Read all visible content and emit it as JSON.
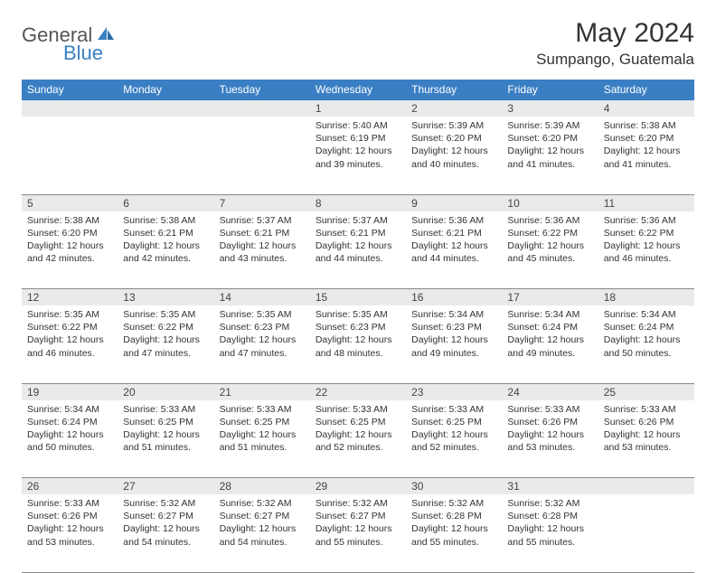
{
  "logo": {
    "text1": "General",
    "text2": "Blue",
    "color_general": "#555555",
    "color_blue": "#3a7fc4"
  },
  "title": "May 2024",
  "location": "Sumpango, Guatemala",
  "header_bg": "#3a7fc4",
  "daynum_bg": "#e9eaec",
  "weekdays": [
    "Sunday",
    "Monday",
    "Tuesday",
    "Wednesday",
    "Thursday",
    "Friday",
    "Saturday"
  ],
  "weeks": [
    [
      null,
      null,
      null,
      {
        "n": "1",
        "sr": "Sunrise: 5:40 AM",
        "ss": "Sunset: 6:19 PM",
        "d1": "Daylight: 12 hours",
        "d2": "and 39 minutes."
      },
      {
        "n": "2",
        "sr": "Sunrise: 5:39 AM",
        "ss": "Sunset: 6:20 PM",
        "d1": "Daylight: 12 hours",
        "d2": "and 40 minutes."
      },
      {
        "n": "3",
        "sr": "Sunrise: 5:39 AM",
        "ss": "Sunset: 6:20 PM",
        "d1": "Daylight: 12 hours",
        "d2": "and 41 minutes."
      },
      {
        "n": "4",
        "sr": "Sunrise: 5:38 AM",
        "ss": "Sunset: 6:20 PM",
        "d1": "Daylight: 12 hours",
        "d2": "and 41 minutes."
      }
    ],
    [
      {
        "n": "5",
        "sr": "Sunrise: 5:38 AM",
        "ss": "Sunset: 6:20 PM",
        "d1": "Daylight: 12 hours",
        "d2": "and 42 minutes."
      },
      {
        "n": "6",
        "sr": "Sunrise: 5:38 AM",
        "ss": "Sunset: 6:21 PM",
        "d1": "Daylight: 12 hours",
        "d2": "and 42 minutes."
      },
      {
        "n": "7",
        "sr": "Sunrise: 5:37 AM",
        "ss": "Sunset: 6:21 PM",
        "d1": "Daylight: 12 hours",
        "d2": "and 43 minutes."
      },
      {
        "n": "8",
        "sr": "Sunrise: 5:37 AM",
        "ss": "Sunset: 6:21 PM",
        "d1": "Daylight: 12 hours",
        "d2": "and 44 minutes."
      },
      {
        "n": "9",
        "sr": "Sunrise: 5:36 AM",
        "ss": "Sunset: 6:21 PM",
        "d1": "Daylight: 12 hours",
        "d2": "and 44 minutes."
      },
      {
        "n": "10",
        "sr": "Sunrise: 5:36 AM",
        "ss": "Sunset: 6:22 PM",
        "d1": "Daylight: 12 hours",
        "d2": "and 45 minutes."
      },
      {
        "n": "11",
        "sr": "Sunrise: 5:36 AM",
        "ss": "Sunset: 6:22 PM",
        "d1": "Daylight: 12 hours",
        "d2": "and 46 minutes."
      }
    ],
    [
      {
        "n": "12",
        "sr": "Sunrise: 5:35 AM",
        "ss": "Sunset: 6:22 PM",
        "d1": "Daylight: 12 hours",
        "d2": "and 46 minutes."
      },
      {
        "n": "13",
        "sr": "Sunrise: 5:35 AM",
        "ss": "Sunset: 6:22 PM",
        "d1": "Daylight: 12 hours",
        "d2": "and 47 minutes."
      },
      {
        "n": "14",
        "sr": "Sunrise: 5:35 AM",
        "ss": "Sunset: 6:23 PM",
        "d1": "Daylight: 12 hours",
        "d2": "and 47 minutes."
      },
      {
        "n": "15",
        "sr": "Sunrise: 5:35 AM",
        "ss": "Sunset: 6:23 PM",
        "d1": "Daylight: 12 hours",
        "d2": "and 48 minutes."
      },
      {
        "n": "16",
        "sr": "Sunrise: 5:34 AM",
        "ss": "Sunset: 6:23 PM",
        "d1": "Daylight: 12 hours",
        "d2": "and 49 minutes."
      },
      {
        "n": "17",
        "sr": "Sunrise: 5:34 AM",
        "ss": "Sunset: 6:24 PM",
        "d1": "Daylight: 12 hours",
        "d2": "and 49 minutes."
      },
      {
        "n": "18",
        "sr": "Sunrise: 5:34 AM",
        "ss": "Sunset: 6:24 PM",
        "d1": "Daylight: 12 hours",
        "d2": "and 50 minutes."
      }
    ],
    [
      {
        "n": "19",
        "sr": "Sunrise: 5:34 AM",
        "ss": "Sunset: 6:24 PM",
        "d1": "Daylight: 12 hours",
        "d2": "and 50 minutes."
      },
      {
        "n": "20",
        "sr": "Sunrise: 5:33 AM",
        "ss": "Sunset: 6:25 PM",
        "d1": "Daylight: 12 hours",
        "d2": "and 51 minutes."
      },
      {
        "n": "21",
        "sr": "Sunrise: 5:33 AM",
        "ss": "Sunset: 6:25 PM",
        "d1": "Daylight: 12 hours",
        "d2": "and 51 minutes."
      },
      {
        "n": "22",
        "sr": "Sunrise: 5:33 AM",
        "ss": "Sunset: 6:25 PM",
        "d1": "Daylight: 12 hours",
        "d2": "and 52 minutes."
      },
      {
        "n": "23",
        "sr": "Sunrise: 5:33 AM",
        "ss": "Sunset: 6:25 PM",
        "d1": "Daylight: 12 hours",
        "d2": "and 52 minutes."
      },
      {
        "n": "24",
        "sr": "Sunrise: 5:33 AM",
        "ss": "Sunset: 6:26 PM",
        "d1": "Daylight: 12 hours",
        "d2": "and 53 minutes."
      },
      {
        "n": "25",
        "sr": "Sunrise: 5:33 AM",
        "ss": "Sunset: 6:26 PM",
        "d1": "Daylight: 12 hours",
        "d2": "and 53 minutes."
      }
    ],
    [
      {
        "n": "26",
        "sr": "Sunrise: 5:33 AM",
        "ss": "Sunset: 6:26 PM",
        "d1": "Daylight: 12 hours",
        "d2": "and 53 minutes."
      },
      {
        "n": "27",
        "sr": "Sunrise: 5:32 AM",
        "ss": "Sunset: 6:27 PM",
        "d1": "Daylight: 12 hours",
        "d2": "and 54 minutes."
      },
      {
        "n": "28",
        "sr": "Sunrise: 5:32 AM",
        "ss": "Sunset: 6:27 PM",
        "d1": "Daylight: 12 hours",
        "d2": "and 54 minutes."
      },
      {
        "n": "29",
        "sr": "Sunrise: 5:32 AM",
        "ss": "Sunset: 6:27 PM",
        "d1": "Daylight: 12 hours",
        "d2": "and 55 minutes."
      },
      {
        "n": "30",
        "sr": "Sunrise: 5:32 AM",
        "ss": "Sunset: 6:28 PM",
        "d1": "Daylight: 12 hours",
        "d2": "and 55 minutes."
      },
      {
        "n": "31",
        "sr": "Sunrise: 5:32 AM",
        "ss": "Sunset: 6:28 PM",
        "d1": "Daylight: 12 hours",
        "d2": "and 55 minutes."
      },
      null
    ]
  ]
}
